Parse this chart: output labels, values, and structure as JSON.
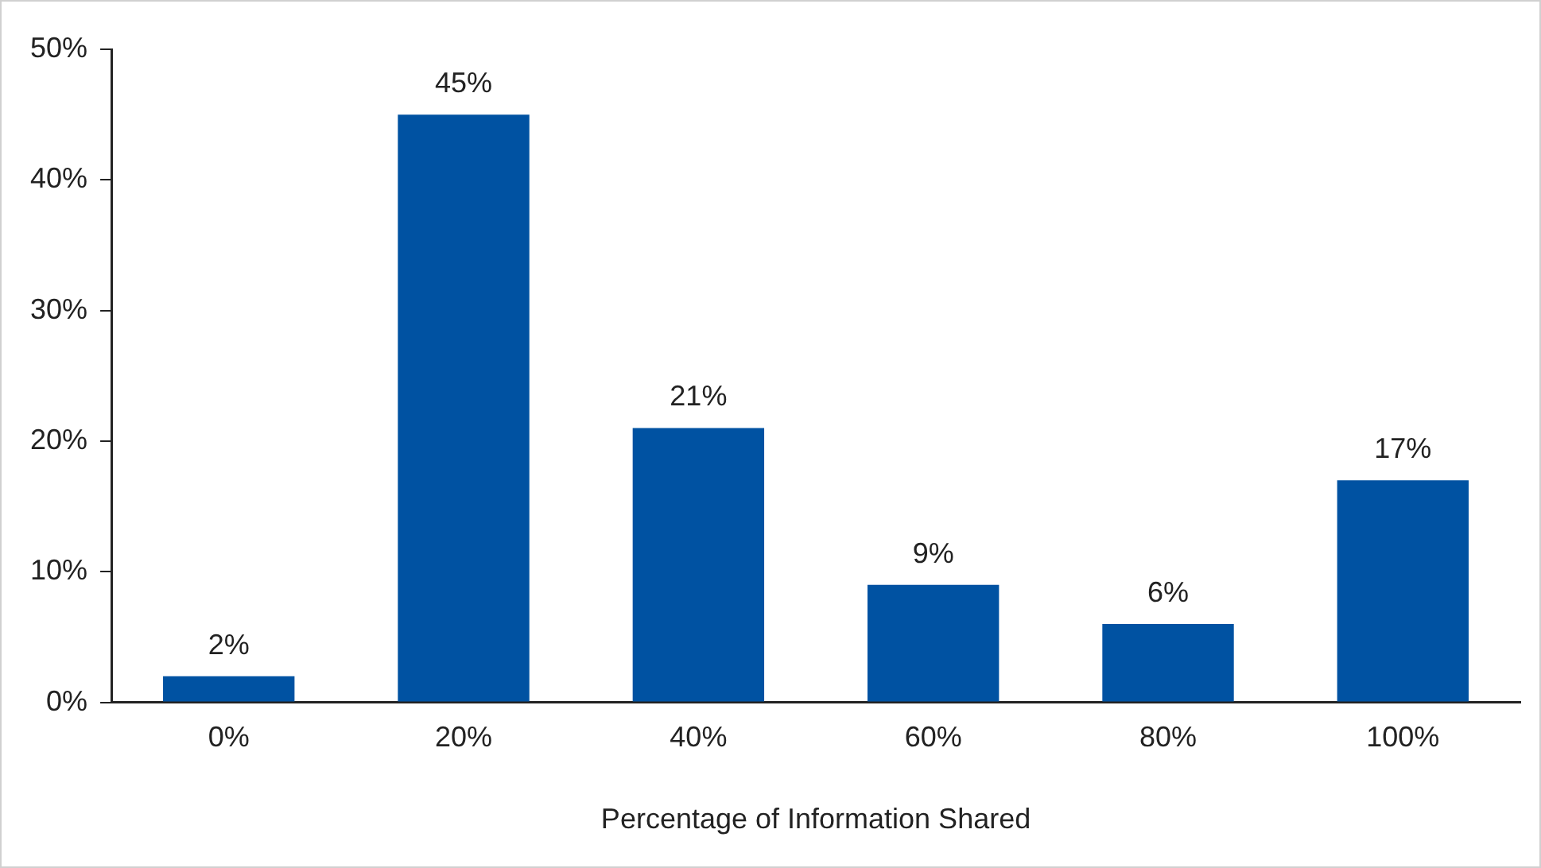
{
  "chart_data": {
    "type": "bar",
    "xlabel": "Percentage of Information Shared",
    "categories": [
      "0%",
      "20%",
      "40%",
      "60%",
      "80%",
      "100%"
    ],
    "values": [
      2,
      45,
      21,
      9,
      6,
      17
    ],
    "value_labels": [
      "2%",
      "45%",
      "21%",
      "9%",
      "6%",
      "17%"
    ],
    "color": "#0052a2",
    "ylim": [
      0,
      50
    ],
    "yticks": [
      {
        "value": 0,
        "label": "0%"
      },
      {
        "value": 10,
        "label": "10%"
      },
      {
        "value": 20,
        "label": "20%"
      },
      {
        "value": 30,
        "label": "30%"
      },
      {
        "value": 40,
        "label": "40%"
      },
      {
        "value": 50,
        "label": "50%"
      }
    ],
    "grid": false,
    "legend": false
  }
}
